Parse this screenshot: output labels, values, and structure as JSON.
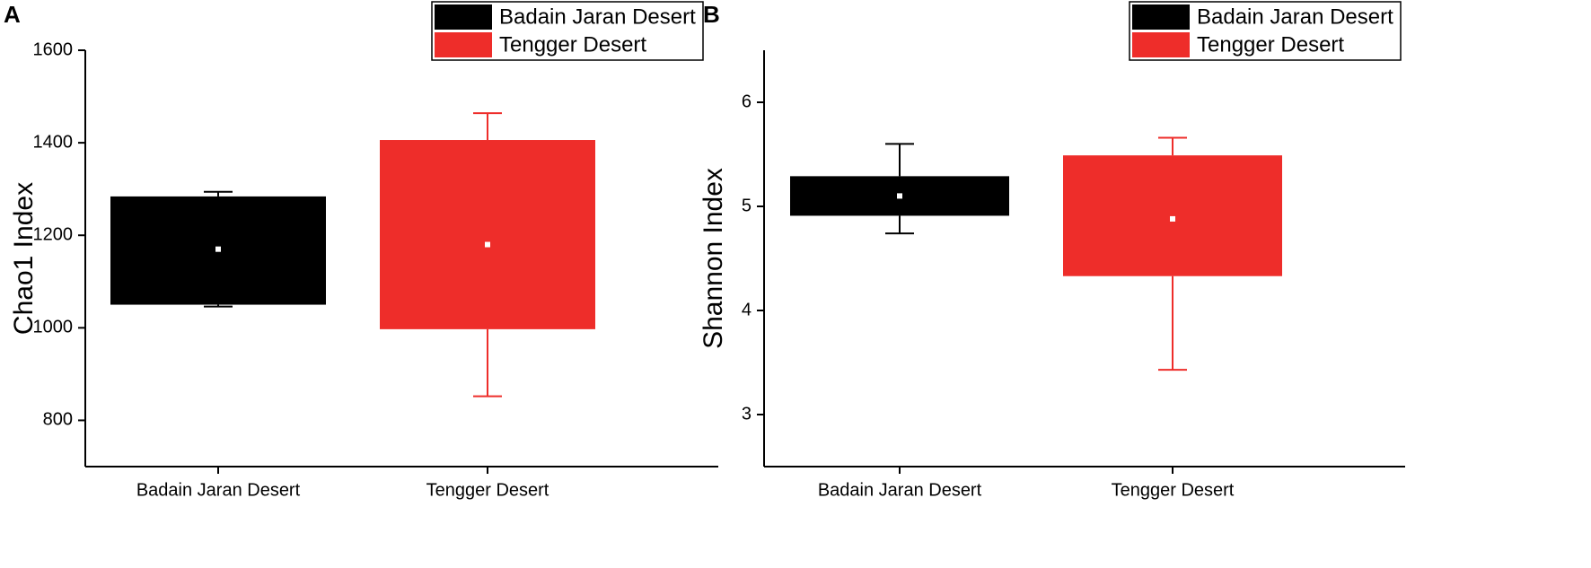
{
  "chart_data": [
    {
      "type": "box",
      "panel_label": "A",
      "y_label": "Chao1 Index",
      "ylim": [
        700,
        1600
      ],
      "yticks": [
        800,
        1000,
        1200,
        1400,
        1600
      ],
      "series": [
        {
          "name": "Badain Jaran Desert",
          "color": "#000000",
          "min": 1046,
          "q1": 1050,
          "mean": 1170,
          "q3": 1284,
          "max": 1294
        },
        {
          "name": "Tengger Desert",
          "color": "#ee2d2a",
          "min": 852,
          "q1": 997,
          "mean": 1180,
          "q3": 1406,
          "max": 1464
        }
      ]
    },
    {
      "type": "box",
      "panel_label": "B",
      "y_label": "Shannon Index",
      "ylim": [
        2.5,
        6.5
      ],
      "yticks": [
        3,
        4,
        5,
        6
      ],
      "series": [
        {
          "name": "Badain Jaran Desert",
          "color": "#000000",
          "min": 4.74,
          "q1": 4.91,
          "mean": 5.1,
          "q3": 5.29,
          "max": 5.6
        },
        {
          "name": "Tengger Desert",
          "color": "#ee2d2a",
          "min": 3.43,
          "q1": 4.33,
          "mean": 4.88,
          "q3": 5.49,
          "max": 5.66
        }
      ]
    }
  ]
}
